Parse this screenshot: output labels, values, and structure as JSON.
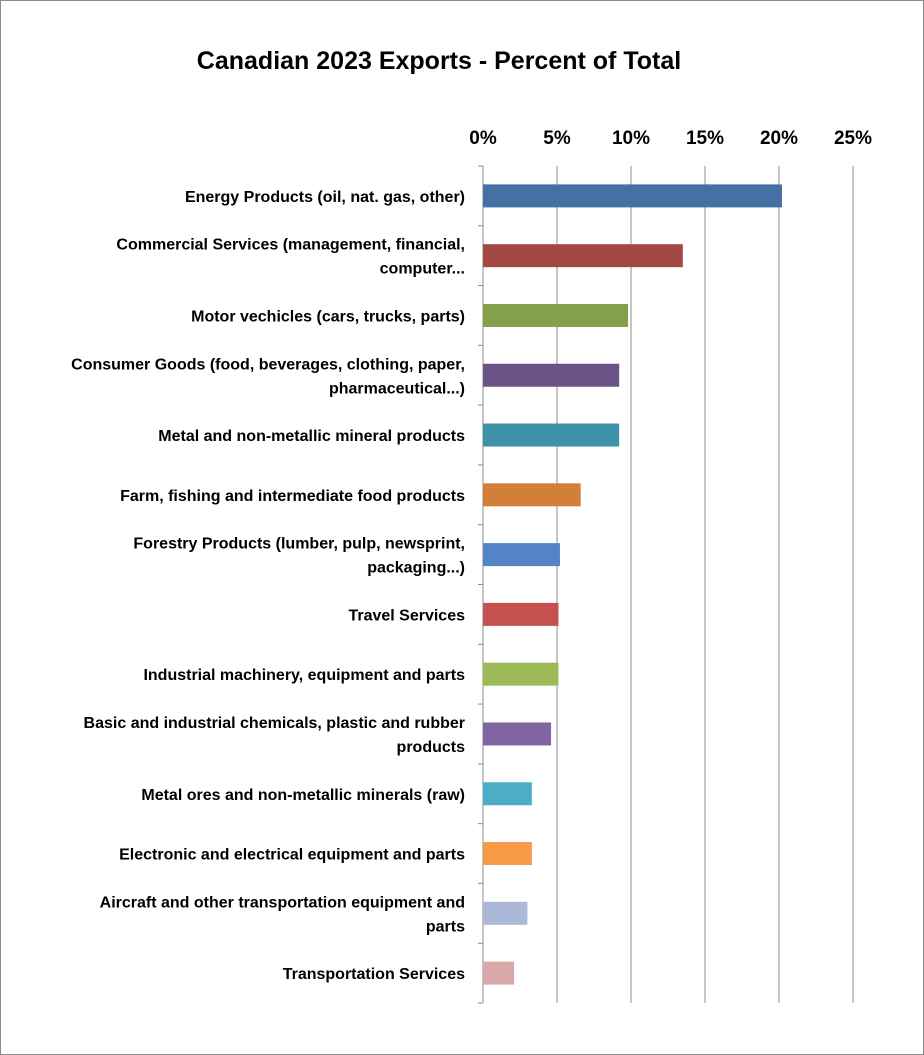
{
  "chart_data": {
    "type": "bar",
    "orientation": "horizontal",
    "title": "Canadian 2023 Exports - Percent of Total",
    "xlabel": "",
    "ylabel": "",
    "xlim": [
      0,
      0.25
    ],
    "x_ticks": [
      "0%",
      "5%",
      "10%",
      "15%",
      "20%",
      "25%"
    ],
    "x_axis_position": "top",
    "grid": true,
    "legend": "none",
    "categories": [
      [
        "Energy Products (oil, nat. gas, other)"
      ],
      [
        "Commercial Services (management, financial,",
        "computer..."
      ],
      [
        "Motor vechicles (cars, trucks, parts)"
      ],
      [
        "Consumer Goods (food, beverages, clothing, paper,",
        "pharmaceutical...)"
      ],
      [
        "Metal and non-metallic mineral products"
      ],
      [
        "Farm, fishing and intermediate food products"
      ],
      [
        "Forestry Products (lumber, pulp, newsprint,",
        "packaging...)"
      ],
      [
        "Travel Services"
      ],
      [
        "Industrial machinery, equipment and parts"
      ],
      [
        "Basic and industrial chemicals, plastic and rubber",
        "products"
      ],
      [
        "Metal ores and non-metallic minerals (raw)"
      ],
      [
        "Electronic and electrical equipment and parts"
      ],
      [
        "Aircraft and other transportation equipment and",
        "parts"
      ],
      [
        "Transportation Services"
      ]
    ],
    "values": [
      0.202,
      0.135,
      0.098,
      0.092,
      0.092,
      0.066,
      0.052,
      0.051,
      0.051,
      0.046,
      0.033,
      0.033,
      0.03,
      0.021
    ],
    "colors": [
      "#4570a4",
      "#a14744",
      "#82a14a",
      "#6b5287",
      "#3d92a8",
      "#d17f3a",
      "#5385c6",
      "#c6504d",
      "#9cbb58",
      "#8165a2",
      "#4badc6",
      "#f79a46",
      "#aab9d8",
      "#d9a9a8"
    ]
  }
}
